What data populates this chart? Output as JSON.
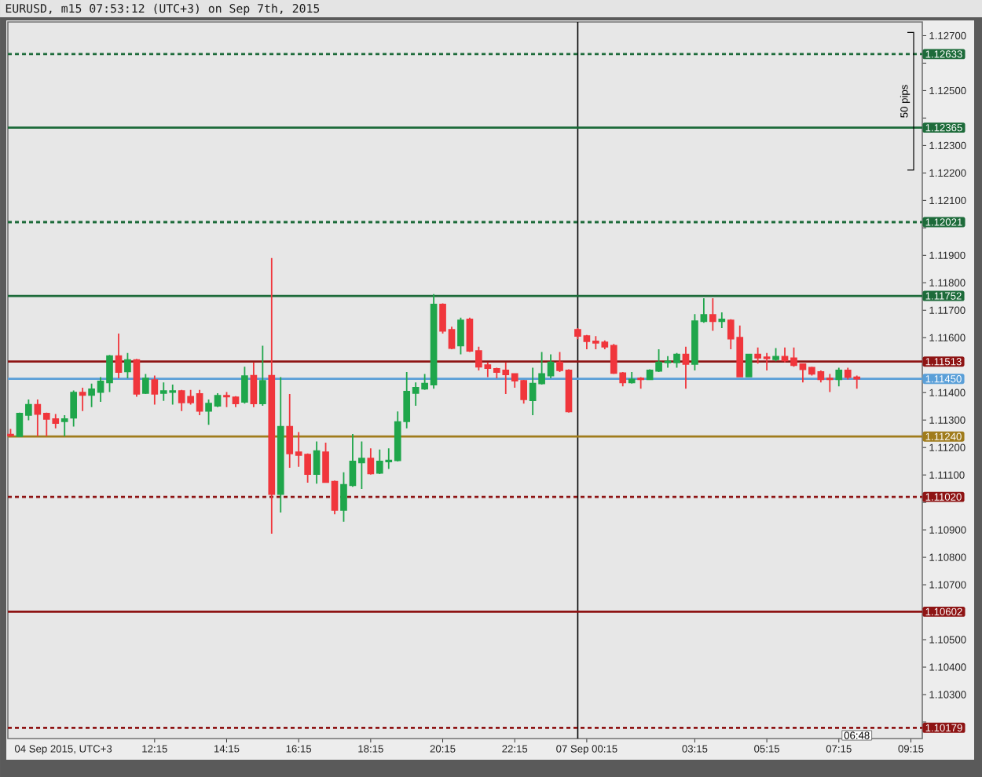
{
  "chart_data": {
    "type": "candlestick",
    "title": "EURUSD, m15 07:53:12 (UTC+3) on Sep 7th, 2015",
    "annotations": [
      "04 Sep 2015, UTC+3",
      "06:48",
      "50 pips"
    ],
    "categories": [
      null,
      null,
      null,
      null,
      null,
      null,
      null,
      null,
      null,
      null,
      null,
      null,
      null,
      null,
      null,
      null,
      "12:15",
      null,
      null,
      null,
      null,
      null,
      null,
      null,
      "14:15",
      null,
      null,
      null,
      null,
      null,
      null,
      null,
      "16:15",
      null,
      null,
      null,
      null,
      null,
      null,
      null,
      "18:15",
      null,
      null,
      null,
      null,
      null,
      null,
      null,
      "20:15",
      null,
      null,
      null,
      null,
      null,
      null,
      null,
      "22:15",
      null,
      null,
      null,
      null,
      null,
      null,
      null,
      "07 Sep 00:15",
      null,
      null,
      null,
      null,
      null,
      null,
      null,
      null,
      null,
      null,
      null,
      "03:15",
      null,
      null,
      null,
      null,
      null,
      null,
      null,
      "05:15",
      null,
      null,
      null,
      null,
      null,
      null,
      null,
      "07:15",
      null,
      null,
      null,
      null,
      null,
      null,
      null,
      "09:15"
    ],
    "ohlc": [
      [
        1.11247,
        1.11268,
        1.11239,
        1.11243
      ],
      [
        1.11241,
        1.11327,
        1.11239,
        1.11324
      ],
      [
        1.11318,
        1.11375,
        1.11299,
        1.11356
      ],
      [
        1.11356,
        1.11375,
        1.11241,
        1.11322
      ],
      [
        1.11324,
        1.11327,
        1.11241,
        1.11304
      ],
      [
        1.11304,
        1.11322,
        1.1127,
        1.11289
      ],
      [
        1.11295,
        1.11318,
        1.11241,
        1.11304
      ],
      [
        1.11308,
        1.11408,
        1.11276,
        1.114
      ],
      [
        1.114,
        1.11418,
        1.11333,
        1.11391
      ],
      [
        1.11391,
        1.11433,
        1.11347,
        1.11412
      ],
      [
        1.11402,
        1.11456,
        1.11366,
        1.11441
      ],
      [
        1.11437,
        1.11537,
        1.11402,
        1.11533
      ],
      [
        1.11533,
        1.11615,
        1.11452,
        1.11475
      ],
      [
        1.11477,
        1.11544,
        1.11452,
        1.11519
      ],
      [
        1.11519,
        1.11523,
        1.11385,
        1.11395
      ],
      [
        1.11398,
        1.11468,
        1.11395,
        1.11452
      ],
      [
        1.11446,
        1.11462,
        1.11356,
        1.11395
      ],
      [
        1.11398,
        1.11437,
        1.1137,
        1.11406
      ],
      [
        1.11402,
        1.11429,
        1.11356,
        1.11406
      ],
      [
        1.11406,
        1.1141,
        1.11333,
        1.11364
      ],
      [
        1.11385,
        1.1141,
        1.11356,
        1.11364
      ],
      [
        1.11395,
        1.1141,
        1.11318,
        1.11333
      ],
      [
        1.11333,
        1.11375,
        1.11283,
        1.1136
      ],
      [
        1.11352,
        1.11398,
        1.11347,
        1.11389
      ],
      [
        1.11389,
        1.11402,
        1.11347,
        1.11385
      ],
      [
        1.11383,
        1.11387,
        1.11347,
        1.1136
      ],
      [
        1.11366,
        1.11494,
        1.1136,
        1.1146
      ],
      [
        1.11462,
        1.1151,
        1.11347,
        1.1136
      ],
      [
        1.1136,
        1.11571,
        1.11352,
        1.11443
      ],
      [
        1.11462,
        1.1189,
        1.10886,
        1.1103
      ],
      [
        1.1103,
        1.11456,
        1.10963,
        1.11276
      ],
      [
        1.11276,
        1.11395,
        1.11126,
        1.11178
      ],
      [
        1.11183,
        1.11256,
        1.1113,
        1.11172
      ],
      [
        1.11174,
        1.11178,
        1.11072,
        1.11103
      ],
      [
        1.11103,
        1.11222,
        1.11068,
        1.11187
      ],
      [
        1.11183,
        1.11218,
        1.11072,
        1.11074
      ],
      [
        1.11076,
        1.1108,
        1.10957,
        1.10972
      ],
      [
        1.10972,
        1.1111,
        1.1093,
        1.11064
      ],
      [
        1.11062,
        1.11249,
        1.11057,
        1.11149
      ],
      [
        1.11145,
        1.11222,
        1.11049,
        1.1116
      ],
      [
        1.1116,
        1.11197,
        1.11101,
        1.11105
      ],
      [
        1.11107,
        1.11193,
        1.11103,
        1.11149
      ],
      [
        1.11149,
        1.11197,
        1.11122,
        1.11153
      ],
      [
        1.11153,
        1.11331,
        1.11149,
        1.11293
      ],
      [
        1.11295,
        1.11475,
        1.1127,
        1.11404
      ],
      [
        1.11398,
        1.11437,
        1.11352,
        1.11418
      ],
      [
        1.11414,
        1.11468,
        1.1141,
        1.11433
      ],
      [
        1.11429,
        1.11759,
        1.11414,
        1.11721
      ],
      [
        1.11721,
        1.11725,
        1.11615,
        1.11625
      ],
      [
        1.11629,
        1.1164,
        1.11558,
        1.11562
      ],
      [
        1.11571,
        1.11673,
        1.11539,
        1.11663
      ],
      [
        1.11667,
        1.11673,
        1.11548,
        1.11552
      ],
      [
        1.11552,
        1.11567,
        1.11481,
        1.11494
      ],
      [
        1.115,
        1.1151,
        1.11456,
        1.11489
      ],
      [
        1.11487,
        1.11491,
        1.11452,
        1.11475
      ],
      [
        1.11481,
        1.1151,
        1.11395,
        1.11466
      ],
      [
        1.11468,
        1.11471,
        1.11418,
        1.11443
      ],
      [
        1.11443,
        1.11446,
        1.1136,
        1.11375
      ],
      [
        1.11372,
        1.11491,
        1.11318,
        1.11433
      ],
      [
        1.11433,
        1.11548,
        1.11429,
        1.11468
      ],
      [
        1.11462,
        1.11539,
        1.11452,
        1.1151
      ],
      [
        1.1151,
        1.11548,
        1.11475,
        1.11481
      ],
      [
        1.11481,
        1.11485,
        1.11327,
        1.11331
      ],
      [
        1.11629,
        1.11635,
        1.11594,
        1.11606
      ],
      [
        1.11606,
        1.1161,
        1.11558,
        1.11587
      ],
      [
        1.11587,
        1.11606,
        1.11558,
        1.11581
      ],
      [
        1.11583,
        1.1159,
        1.11558,
        1.11567
      ],
      [
        1.11571,
        1.11577,
        1.11468,
        1.11471
      ],
      [
        1.11471,
        1.11475,
        1.11423,
        1.11437
      ],
      [
        1.11437,
        1.11475,
        1.11433,
        1.11448
      ],
      [
        1.11452,
        1.11456,
        1.11414,
        1.11448
      ],
      [
        1.11448,
        1.11485,
        1.11446,
        1.11481
      ],
      [
        1.11479,
        1.11558,
        1.11475,
        1.1151
      ],
      [
        1.1151,
        1.11533,
        1.11491,
        1.11514
      ],
      [
        1.1151,
        1.11544,
        1.11491,
        1.11539
      ],
      [
        1.11539,
        1.11567,
        1.11414,
        1.11504
      ],
      [
        1.11504,
        1.11686,
        1.11481,
        1.1166
      ],
      [
        1.1166,
        1.11744,
        1.11654,
        1.11683
      ],
      [
        1.11683,
        1.11744,
        1.11625,
        1.1166
      ],
      [
        1.1166,
        1.11692,
        1.11635,
        1.11667
      ],
      [
        1.11663,
        1.11667,
        1.11558,
        1.11596
      ],
      [
        1.116,
        1.11644,
        1.11456,
        1.11458
      ],
      [
        1.11458,
        1.11541,
        1.11456,
        1.11539
      ],
      [
        1.11539,
        1.11564,
        1.11506,
        1.11527
      ],
      [
        1.11529,
        1.11544,
        1.11481,
        1.11525
      ],
      [
        1.11521,
        1.11562,
        1.11514,
        1.11531
      ],
      [
        1.11531,
        1.11564,
        1.1151,
        1.11517
      ],
      [
        1.11525,
        1.11564,
        1.11494,
        1.115
      ],
      [
        1.11504,
        1.11506,
        1.11437,
        1.11485
      ],
      [
        1.11491,
        1.11494,
        1.11462,
        1.11468
      ],
      [
        1.11475,
        1.11481,
        1.11437,
        1.11448
      ],
      [
        1.11452,
        1.11468,
        1.11402,
        1.11448
      ],
      [
        1.11448,
        1.11491,
        1.11423,
        1.11481
      ],
      [
        1.11481,
        1.11491,
        1.11448,
        1.11456
      ],
      [
        1.11456,
        1.11462,
        1.11414,
        1.1145
      ],
      null,
      null,
      null,
      null,
      null,
      null
    ],
    "colors": [
      "#f0363c",
      "#1fa64b",
      "#1fa64b",
      "#f0363c",
      "#f0363c",
      "#f0363c",
      "#1fa64b",
      "#1fa64b",
      "#f0363c",
      "#1fa64b",
      "#1fa64b",
      "#1fa64b",
      "#f0363c",
      "#1fa64b",
      "#f0363c",
      "#1fa64b",
      "#f0363c",
      "#1fa64b",
      "#1fa64b",
      "#f0363c",
      "#f0363c",
      "#f0363c",
      "#1fa64b",
      "#1fa64b",
      "#f0363c",
      "#f0363c",
      "#1fa64b",
      "#f0363c",
      "#1fa64b",
      "#f0363c",
      "#1fa64b",
      "#f0363c",
      "#f0363c",
      "#f0363c",
      "#1fa64b",
      "#f0363c",
      "#f0363c",
      "#1fa64b",
      "#1fa64b",
      "#1fa64b",
      "#f0363c",
      "#1fa64b",
      "#1fa64b",
      "#1fa64b",
      "#1fa64b",
      "#1fa64b",
      "#1fa64b",
      "#1fa64b",
      "#f0363c",
      "#f0363c",
      "#1fa64b",
      "#f0363c",
      "#f0363c",
      "#f0363c",
      "#f0363c",
      "#f0363c",
      "#f0363c",
      "#f0363c",
      "#1fa64b",
      "#1fa64b",
      "#1fa64b",
      "#f0363c",
      "#f0363c",
      "#f0363c",
      "#f0363c",
      "#f0363c",
      "#f0363c",
      "#f0363c",
      "#f0363c",
      "#1fa64b",
      "#f0363c",
      "#1fa64b",
      "#1fa64b",
      "#1fa64b",
      "#1fa64b",
      "#f0363c",
      "#1fa64b",
      "#1fa64b",
      "#f0363c",
      "#1fa64b",
      "#f0363c",
      "#f0363c",
      "#1fa64b",
      "#f0363c",
      "#f0363c",
      "#1fa64b",
      "#f0363c",
      "#f0363c",
      "#f0363c",
      "#f0363c",
      "#f0363c",
      "#f0363c",
      "#1fa64b",
      "#f0363c",
      "#f0363c",
      null,
      null,
      null,
      null,
      null,
      null
    ],
    "ylim": [
      1.1014,
      1.1275
    ],
    "yticks": [
      {
        "value": 1.102,
        "label": null
      },
      {
        "value": 1.103,
        "label": "1.10300"
      },
      {
        "value": 1.104,
        "label": "1.10400"
      },
      {
        "value": 1.105,
        "label": "1.10500"
      },
      {
        "value": 1.106,
        "label": null
      },
      {
        "value": 1.107,
        "label": "1.10700"
      },
      {
        "value": 1.108,
        "label": "1.10800"
      },
      {
        "value": 1.109,
        "label": "1.10900"
      },
      {
        "value": 1.11,
        "label": null
      },
      {
        "value": 1.111,
        "label": "1.11100"
      },
      {
        "value": 1.112,
        "label": "1.11200"
      },
      {
        "value": 1.113,
        "label": "1.11300"
      },
      {
        "value": 1.114,
        "label": "1.11400"
      },
      {
        "value": 1.115,
        "label": null
      },
      {
        "value": 1.116,
        "label": "1.11600"
      },
      {
        "value": 1.117,
        "label": "1.11700"
      },
      {
        "value": 1.118,
        "label": "1.11800"
      },
      {
        "value": 1.119,
        "label": "1.11900"
      },
      {
        "value": 1.12,
        "label": null
      },
      {
        "value": 1.121,
        "label": "1.12100"
      },
      {
        "value": 1.122,
        "label": "1.12200"
      },
      {
        "value": 1.123,
        "label": "1.12300"
      },
      {
        "value": 1.124,
        "label": null
      },
      {
        "value": 1.125,
        "label": "1.12500"
      },
      {
        "value": 1.126,
        "label": null
      },
      {
        "value": 1.127,
        "label": "1.12700"
      }
    ],
    "ref_lines": [
      {
        "axis": "y",
        "value": 1.12633,
        "label": "1.12633",
        "color": "#1d6b3a",
        "line_style": "dashed"
      },
      {
        "axis": "y",
        "value": 1.12365,
        "label": "1.12365",
        "color": "#1d6b3a"
      },
      {
        "axis": "y",
        "value": 1.12021,
        "label": "1.12021",
        "color": "#1d6b3a",
        "line_style": "dashed"
      },
      {
        "axis": "y",
        "value": 1.11752,
        "label": "1.11752",
        "color": "#1d6b3a"
      },
      {
        "axis": "y",
        "value": 1.11513,
        "label": "1.11513",
        "color": "#8e1414"
      },
      {
        "axis": "y",
        "value": 1.1145,
        "label": "1.11450",
        "color": "#5a9fd8"
      },
      {
        "axis": "y",
        "value": 1.1124,
        "label": "1.11240",
        "color": "#a07c1c"
      },
      {
        "axis": "y",
        "value": 1.1102,
        "label": "1.11020",
        "color": "#8e1414",
        "line_style": "dashed"
      },
      {
        "axis": "y",
        "value": 1.10602,
        "label": "1.10602",
        "color": "#8e1414"
      },
      {
        "axis": "y",
        "value": 1.10179,
        "label": "1.10179",
        "color": "#8e1414",
        "line_style": "dashed"
      }
    ]
  }
}
